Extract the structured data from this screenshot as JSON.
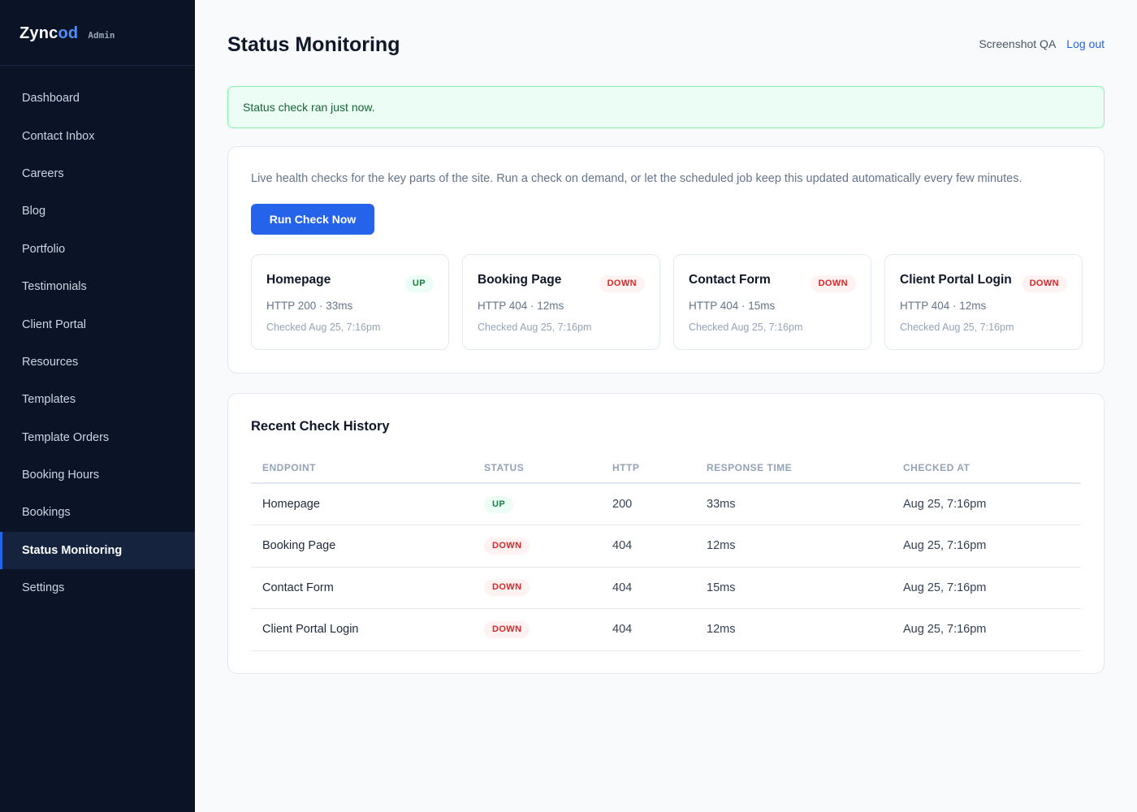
{
  "brand": {
    "name_main": "Zync",
    "name_accent": "od",
    "tag": "Admin"
  },
  "sidebar": {
    "items": [
      {
        "label": "Dashboard"
      },
      {
        "label": "Contact Inbox"
      },
      {
        "label": "Careers"
      },
      {
        "label": "Blog"
      },
      {
        "label": "Portfolio"
      },
      {
        "label": "Testimonials"
      },
      {
        "label": "Client Portal"
      },
      {
        "label": "Resources"
      },
      {
        "label": "Templates"
      },
      {
        "label": "Template Orders"
      },
      {
        "label": "Booking Hours"
      },
      {
        "label": "Bookings"
      },
      {
        "label": "Status Monitoring",
        "active": true
      },
      {
        "label": "Settings"
      }
    ]
  },
  "header": {
    "title": "Status Monitoring",
    "user": "Screenshot QA",
    "logout": "Log out"
  },
  "alert": {
    "message": "Status check ran just now."
  },
  "monitor": {
    "intro": "Live health checks for the key parts of the site. Run a check on demand, or let the scheduled job keep this updated automatically every few minutes.",
    "run_button": "Run Check Now",
    "endpoints": [
      {
        "name": "Homepage",
        "status": "UP",
        "http": "HTTP 200 · 33ms",
        "checked": "Checked Aug 25, 7:16pm"
      },
      {
        "name": "Booking Page",
        "status": "DOWN",
        "http": "HTTP 404 · 12ms",
        "checked": "Checked Aug 25, 7:16pm"
      },
      {
        "name": "Contact Form",
        "status": "DOWN",
        "http": "HTTP 404 · 15ms",
        "checked": "Checked Aug 25, 7:16pm"
      },
      {
        "name": "Client Portal Login",
        "status": "DOWN",
        "http": "HTTP 404 · 12ms",
        "checked": "Checked Aug 25, 7:16pm"
      }
    ]
  },
  "history": {
    "title": "Recent Check History",
    "columns": [
      "ENDPOINT",
      "STATUS",
      "HTTP",
      "RESPONSE TIME",
      "CHECKED AT"
    ],
    "rows": [
      {
        "endpoint": "Homepage",
        "status": "UP",
        "http": "200",
        "response": "33ms",
        "checked": "Aug 25, 7:16pm"
      },
      {
        "endpoint": "Booking Page",
        "status": "DOWN",
        "http": "404",
        "response": "12ms",
        "checked": "Aug 25, 7:16pm"
      },
      {
        "endpoint": "Contact Form",
        "status": "DOWN",
        "http": "404",
        "response": "15ms",
        "checked": "Aug 25, 7:16pm"
      },
      {
        "endpoint": "Client Portal Login",
        "status": "DOWN",
        "http": "404",
        "response": "12ms",
        "checked": "Aug 25, 7:16pm"
      }
    ]
  }
}
